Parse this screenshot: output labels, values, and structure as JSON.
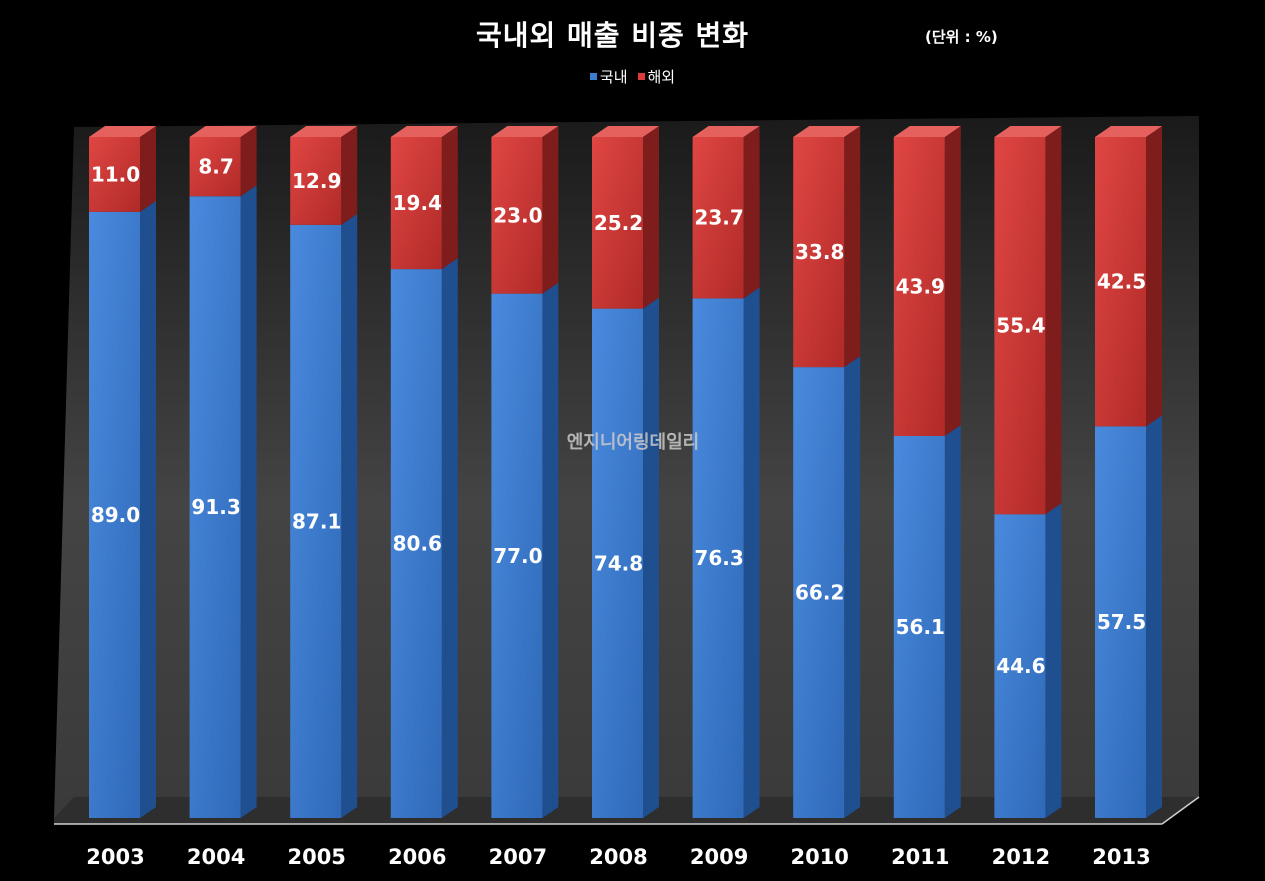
{
  "title": "국내외 매출 비중 변화",
  "unit_note": "(단위 : %)",
  "watermark": "엔지니어링데일리",
  "colors": {
    "background": "#000000",
    "domestic": "#3d7dd0",
    "overseas": "#d93c3a"
  },
  "chart_data": {
    "type": "bar",
    "stacked": true,
    "categories": [
      "2003",
      "2004",
      "2005",
      "2006",
      "2007",
      "2008",
      "2009",
      "2010",
      "2011",
      "2012",
      "2013"
    ],
    "series": [
      {
        "name": "국내",
        "values": [
          89.0,
          91.3,
          87.1,
          80.6,
          77.0,
          74.8,
          76.3,
          66.2,
          56.1,
          44.6,
          57.5
        ]
      },
      {
        "name": "해외",
        "values": [
          11.0,
          8.7,
          12.9,
          19.4,
          23.0,
          25.2,
          23.7,
          33.8,
          43.9,
          55.4,
          42.5
        ]
      }
    ],
    "value_labels": {
      "국내": [
        "89.0",
        "91.3",
        "87.1",
        "80.6",
        "77.0",
        "74.8",
        "76.3",
        "66.2",
        "56.1",
        "44.6",
        "57.5"
      ],
      "해외": [
        "11.0",
        "8.7",
        "12.9",
        "19.4",
        "23.0",
        "25.2",
        "23.7",
        "33.8",
        "43.9",
        "55.4",
        "42.5"
      ]
    },
    "ylim": [
      0,
      100
    ],
    "legend_position": "top-center",
    "grid": false,
    "style": "3d"
  }
}
